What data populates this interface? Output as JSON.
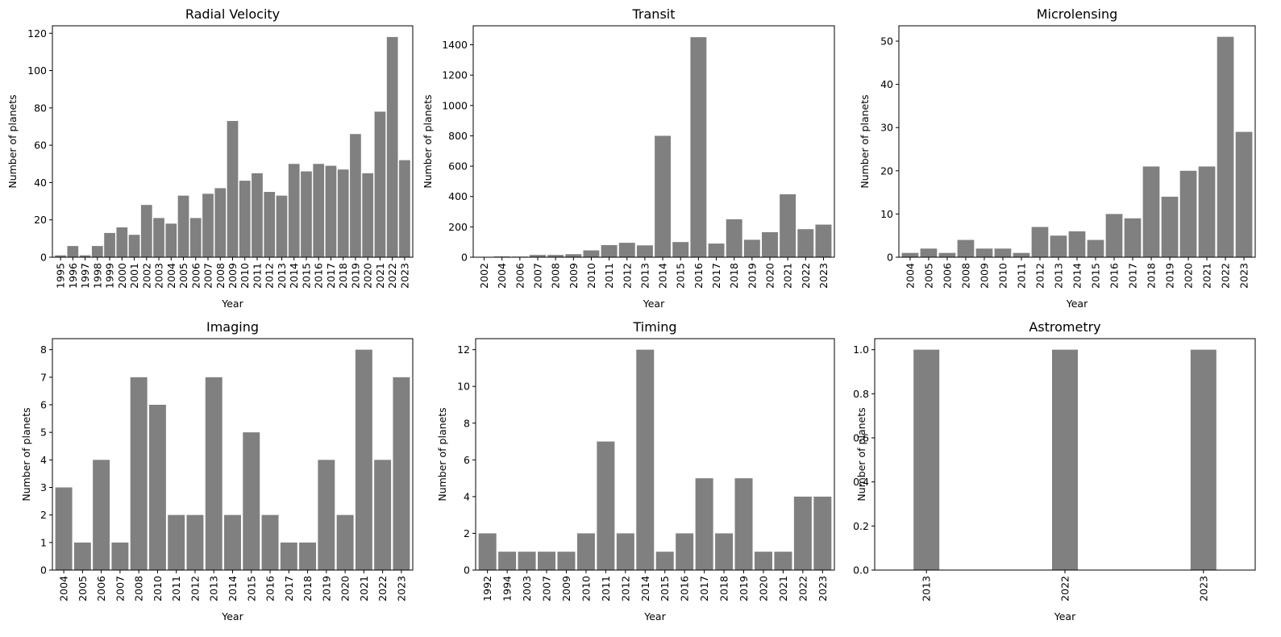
{
  "chart_data": [
    {
      "type": "bar",
      "title": "Radial Velocity",
      "xlabel": "Year",
      "ylabel": "Number of planets",
      "categories": [
        "1995",
        "1996",
        "1997",
        "1998",
        "1999",
        "2000",
        "2001",
        "2002",
        "2003",
        "2004",
        "2005",
        "2006",
        "2007",
        "2008",
        "2009",
        "2010",
        "2011",
        "2012",
        "2013",
        "2014",
        "2015",
        "2016",
        "2017",
        "2018",
        "2019",
        "2020",
        "2021",
        "2022",
        "2023"
      ],
      "values": [
        1,
        6,
        1,
        6,
        13,
        16,
        12,
        28,
        21,
        18,
        33,
        21,
        34,
        37,
        73,
        41,
        45,
        35,
        33,
        50,
        46,
        50,
        49,
        47,
        66,
        45,
        78,
        118,
        52
      ],
      "ylim": [
        0,
        124
      ],
      "yticks": [
        0,
        20,
        40,
        60,
        80,
        100,
        120
      ],
      "ytick_labels": [
        "0",
        "20",
        "40",
        "60",
        "80",
        "100",
        "120"
      ],
      "color": "#808080"
    },
    {
      "type": "bar",
      "title": "Transit",
      "xlabel": "Year",
      "ylabel": "Number of planets",
      "categories": [
        "2002",
        "2004",
        "2006",
        "2007",
        "2008",
        "2009",
        "2010",
        "2011",
        "2012",
        "2013",
        "2014",
        "2015",
        "2016",
        "2017",
        "2018",
        "2019",
        "2020",
        "2021",
        "2022",
        "2023"
      ],
      "values": [
        1,
        5,
        4,
        15,
        15,
        20,
        45,
        80,
        95,
        78,
        800,
        100,
        1450,
        90,
        250,
        115,
        165,
        415,
        185,
        215
      ],
      "ylim": [
        0,
        1525
      ],
      "yticks": [
        0,
        200,
        400,
        600,
        800,
        1000,
        1200,
        1400
      ],
      "ytick_labels": [
        "0",
        "200",
        "400",
        "600",
        "800",
        "1000",
        "1200",
        "1400"
      ],
      "color": "#808080"
    },
    {
      "type": "bar",
      "title": "Microlensing",
      "xlabel": "Year",
      "ylabel": "Number of planets",
      "categories": [
        "2004",
        "2005",
        "2006",
        "2008",
        "2009",
        "2010",
        "2011",
        "2012",
        "2013",
        "2014",
        "2015",
        "2016",
        "2017",
        "2018",
        "2019",
        "2020",
        "2021",
        "2022",
        "2023"
      ],
      "values": [
        1,
        2,
        1,
        4,
        2,
        2,
        1,
        7,
        5,
        6,
        4,
        10,
        9,
        21,
        14,
        20,
        21,
        51,
        29
      ],
      "ylim": [
        0,
        53.55
      ],
      "yticks": [
        0,
        10,
        20,
        30,
        40,
        50
      ],
      "ytick_labels": [
        "0",
        "10",
        "20",
        "30",
        "40",
        "50"
      ],
      "color": "#808080"
    },
    {
      "type": "bar",
      "title": "Imaging",
      "xlabel": "Year",
      "ylabel": "Number of planets",
      "categories": [
        "2004",
        "2005",
        "2006",
        "2007",
        "2008",
        "2010",
        "2011",
        "2012",
        "2013",
        "2014",
        "2015",
        "2016",
        "2017",
        "2018",
        "2019",
        "2020",
        "2021",
        "2022",
        "2023"
      ],
      "values": [
        3,
        1,
        4,
        1,
        7,
        6,
        2,
        2,
        7,
        2,
        5,
        2,
        1,
        1,
        4,
        2,
        8,
        4,
        7
      ],
      "ylim": [
        0,
        8.4
      ],
      "yticks": [
        0,
        1,
        2,
        3,
        4,
        5,
        6,
        7,
        8
      ],
      "ytick_labels": [
        "0",
        "1",
        "2",
        "3",
        "4",
        "5",
        "6",
        "7",
        "8"
      ],
      "color": "#808080"
    },
    {
      "type": "bar",
      "title": "Timing",
      "xlabel": "Year",
      "ylabel": "Number of planets",
      "categories": [
        "1992",
        "1994",
        "2003",
        "2007",
        "2009",
        "2010",
        "2011",
        "2012",
        "2014",
        "2015",
        "2016",
        "2017",
        "2018",
        "2019",
        "2020",
        "2021",
        "2022",
        "2023"
      ],
      "values": [
        2,
        1,
        1,
        1,
        1,
        2,
        7,
        2,
        12,
        1,
        2,
        5,
        2,
        5,
        1,
        1,
        4,
        4
      ],
      "ylim": [
        0,
        12.6
      ],
      "yticks": [
        0,
        2,
        4,
        6,
        8,
        10,
        12
      ],
      "ytick_labels": [
        "0",
        "2",
        "4",
        "6",
        "8",
        "10",
        "12"
      ],
      "color": "#808080"
    },
    {
      "type": "bar",
      "title": "Astrometry",
      "xlabel": "Year",
      "ylabel": "Number of planets",
      "categories": [
        "2013",
        "2022",
        "2023"
      ],
      "values": [
        1,
        1,
        1
      ],
      "ylim": [
        0,
        1.05
      ],
      "yticks": [
        0,
        0.2,
        0.4,
        0.6,
        0.8,
        1.0
      ],
      "ytick_labels": [
        "0.0",
        "0.2",
        "0.4",
        "0.6",
        "0.8",
        "1.0"
      ],
      "color": "#808080"
    }
  ]
}
